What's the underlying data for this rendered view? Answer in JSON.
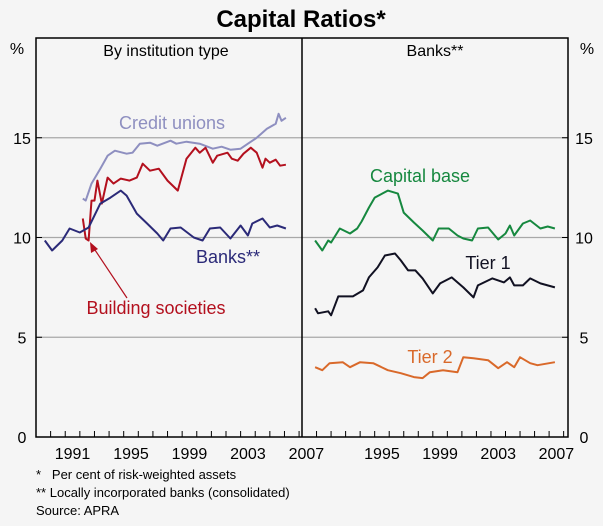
{
  "chart_data": [
    {
      "type": "line",
      "title": "Capital Ratios*",
      "panel_title": "By institution type",
      "ylabel": "%",
      "ylim": [
        0,
        20
      ],
      "yticks": [
        0,
        5,
        10,
        15
      ],
      "xlim": [
        1989,
        2007.2
      ],
      "xticks": [
        1991,
        1995,
        1999,
        2003,
        2007
      ],
      "grid": true,
      "series": [
        {
          "name": "Credit unions",
          "color": "#8e8fc0",
          "points": [
            [
              1992.2,
              11.95
            ],
            [
              1992.4,
              11.85
            ],
            [
              1992.8,
              12.7
            ],
            [
              1993.4,
              13.45
            ],
            [
              1993.9,
              14.1
            ],
            [
              1994.4,
              14.35
            ],
            [
              1995.2,
              14.2
            ],
            [
              1995.6,
              14.25
            ],
            [
              1996.1,
              14.7
            ],
            [
              1996.8,
              14.75
            ],
            [
              1997.3,
              14.6
            ],
            [
              1998.2,
              14.85
            ],
            [
              1998.6,
              14.7
            ],
            [
              1999.3,
              14.8
            ],
            [
              2000.2,
              14.7
            ],
            [
              2001.1,
              14.45
            ],
            [
              2001.7,
              14.55
            ],
            [
              2002.3,
              14.4
            ],
            [
              2003.0,
              14.45
            ],
            [
              2003.5,
              14.7
            ],
            [
              2004.1,
              15.0
            ],
            [
              2004.8,
              15.45
            ],
            [
              2005.4,
              15.7
            ],
            [
              2005.6,
              16.2
            ],
            [
              2005.8,
              15.85
            ],
            [
              2006.1,
              16.0
            ]
          ]
        },
        {
          "name": "Building societies",
          "color": "#b3101e",
          "points": [
            [
              1992.2,
              10.95
            ],
            [
              1992.4,
              9.95
            ],
            [
              1992.6,
              9.85
            ],
            [
              1992.8,
              11.85
            ],
            [
              1993.0,
              11.85
            ],
            [
              1993.2,
              12.85
            ],
            [
              1993.5,
              11.7
            ],
            [
              1993.9,
              13.0
            ],
            [
              1994.3,
              12.7
            ],
            [
              1994.8,
              12.95
            ],
            [
              1995.4,
              12.85
            ],
            [
              1995.9,
              13.0
            ],
            [
              1996.3,
              13.7
            ],
            [
              1996.8,
              13.35
            ],
            [
              1997.4,
              13.45
            ],
            [
              1998.0,
              12.85
            ],
            [
              1998.7,
              12.35
            ],
            [
              1999.3,
              13.95
            ],
            [
              1999.9,
              14.5
            ],
            [
              2000.2,
              14.25
            ],
            [
              2000.6,
              14.5
            ],
            [
              2001.1,
              13.75
            ],
            [
              2001.4,
              14.1
            ],
            [
              2002.1,
              14.25
            ],
            [
              2002.4,
              13.95
            ],
            [
              2002.8,
              13.85
            ],
            [
              2003.2,
              14.2
            ],
            [
              2003.7,
              14.5
            ],
            [
              2004.1,
              14.25
            ],
            [
              2004.5,
              13.5
            ],
            [
              2004.7,
              13.95
            ],
            [
              2005.0,
              13.75
            ],
            [
              2005.4,
              13.9
            ],
            [
              2005.7,
              13.6
            ],
            [
              2006.1,
              13.65
            ]
          ]
        },
        {
          "name": "Banks**",
          "color": "#2b2a78",
          "points": [
            [
              1989.6,
              9.85
            ],
            [
              1990.1,
              9.35
            ],
            [
              1990.8,
              9.85
            ],
            [
              1991.3,
              10.45
            ],
            [
              1992.0,
              10.25
            ],
            [
              1992.6,
              10.5
            ],
            [
              1993.4,
              11.7
            ],
            [
              1994.1,
              12.0
            ],
            [
              1994.8,
              12.35
            ],
            [
              1995.2,
              12.1
            ],
            [
              1995.9,
              11.2
            ],
            [
              1996.6,
              10.7
            ],
            [
              1997.3,
              10.2
            ],
            [
              1997.7,
              9.85
            ],
            [
              1998.2,
              10.45
            ],
            [
              1998.9,
              10.5
            ],
            [
              1999.8,
              10.0
            ],
            [
              2000.4,
              9.85
            ],
            [
              2000.9,
              10.45
            ],
            [
              2001.6,
              10.5
            ],
            [
              2002.3,
              9.95
            ],
            [
              2003.0,
              10.6
            ],
            [
              2003.5,
              10.1
            ],
            [
              2003.8,
              10.7
            ],
            [
              2004.5,
              10.95
            ],
            [
              2005.0,
              10.5
            ],
            [
              2005.5,
              10.6
            ],
            [
              2006.1,
              10.45
            ]
          ]
        }
      ]
    },
    {
      "type": "line",
      "panel_title": "Banks**",
      "ylabel": "%",
      "ylim": [
        0,
        20
      ],
      "yticks": [
        0,
        5,
        10,
        15
      ],
      "xlim": [
        1990,
        2008.3
      ],
      "xticks": [
        1995,
        1999,
        2003,
        2007
      ],
      "grid": true,
      "series": [
        {
          "name": "Capital base",
          "color": "#16883f",
          "points": [
            [
              1990.9,
              9.85
            ],
            [
              1991.4,
              9.35
            ],
            [
              1991.8,
              9.85
            ],
            [
              1992.0,
              9.75
            ],
            [
              1992.6,
              10.45
            ],
            [
              1993.3,
              10.2
            ],
            [
              1993.8,
              10.45
            ],
            [
              1994.1,
              10.8
            ],
            [
              1994.6,
              11.5
            ],
            [
              1995.0,
              12.0
            ],
            [
              1995.9,
              12.35
            ],
            [
              1996.6,
              12.2
            ],
            [
              1997.0,
              11.25
            ],
            [
              1997.7,
              10.75
            ],
            [
              1998.3,
              10.35
            ],
            [
              1999.0,
              9.85
            ],
            [
              1999.4,
              10.45
            ],
            [
              2000.1,
              10.45
            ],
            [
              2000.7,
              10.1
            ],
            [
              2001.1,
              9.95
            ],
            [
              2001.7,
              9.85
            ],
            [
              2002.1,
              10.45
            ],
            [
              2002.8,
              10.5
            ],
            [
              2003.5,
              9.9
            ],
            [
              2004.0,
              10.2
            ],
            [
              2004.3,
              10.6
            ],
            [
              2004.6,
              10.1
            ],
            [
              2005.2,
              10.7
            ],
            [
              2005.7,
              10.85
            ],
            [
              2006.4,
              10.45
            ],
            [
              2006.9,
              10.55
            ],
            [
              2007.4,
              10.45
            ]
          ]
        },
        {
          "name": "Tier 1",
          "color": "#111122",
          "points": [
            [
              1990.9,
              6.45
            ],
            [
              1991.1,
              6.2
            ],
            [
              1991.8,
              6.3
            ],
            [
              1992.0,
              6.1
            ],
            [
              1992.5,
              7.05
            ],
            [
              1993.5,
              7.05
            ],
            [
              1994.2,
              7.35
            ],
            [
              1994.6,
              8.0
            ],
            [
              1995.2,
              8.5
            ],
            [
              1995.7,
              9.1
            ],
            [
              1996.4,
              9.2
            ],
            [
              1996.8,
              8.85
            ],
            [
              1997.3,
              8.35
            ],
            [
              1997.8,
              8.35
            ],
            [
              1998.3,
              7.95
            ],
            [
              1999.0,
              7.2
            ],
            [
              1999.5,
              7.7
            ],
            [
              2000.3,
              8.0
            ],
            [
              2001.1,
              7.5
            ],
            [
              2001.8,
              7.0
            ],
            [
              2002.1,
              7.6
            ],
            [
              2003.1,
              7.95
            ],
            [
              2003.9,
              7.75
            ],
            [
              2004.3,
              8.0
            ],
            [
              2004.6,
              7.6
            ],
            [
              2005.2,
              7.6
            ],
            [
              2005.7,
              7.95
            ],
            [
              2006.4,
              7.7
            ],
            [
              2007.4,
              7.5
            ]
          ]
        },
        {
          "name": "Tier 2",
          "color": "#d9692a",
          "points": [
            [
              1990.9,
              3.5
            ],
            [
              1991.4,
              3.35
            ],
            [
              1991.9,
              3.7
            ],
            [
              1992.8,
              3.75
            ],
            [
              1993.3,
              3.5
            ],
            [
              1994.0,
              3.75
            ],
            [
              1994.9,
              3.7
            ],
            [
              1995.9,
              3.35
            ],
            [
              1996.8,
              3.2
            ],
            [
              1997.7,
              3.0
            ],
            [
              1998.3,
              2.95
            ],
            [
              1998.8,
              3.25
            ],
            [
              1999.7,
              3.35
            ],
            [
              2000.7,
              3.25
            ],
            [
              2001.1,
              4.0
            ],
            [
              2001.8,
              3.95
            ],
            [
              2002.8,
              3.85
            ],
            [
              2003.5,
              3.45
            ],
            [
              2004.1,
              3.75
            ],
            [
              2004.6,
              3.5
            ],
            [
              2005.0,
              4.0
            ],
            [
              2005.7,
              3.7
            ],
            [
              2006.2,
              3.6
            ],
            [
              2007.4,
              3.75
            ]
          ]
        }
      ]
    }
  ],
  "notes": [
    "*   Per cent of risk-weighted assets",
    "** Locally incorporated banks (consolidated)",
    "Source: APRA"
  ]
}
